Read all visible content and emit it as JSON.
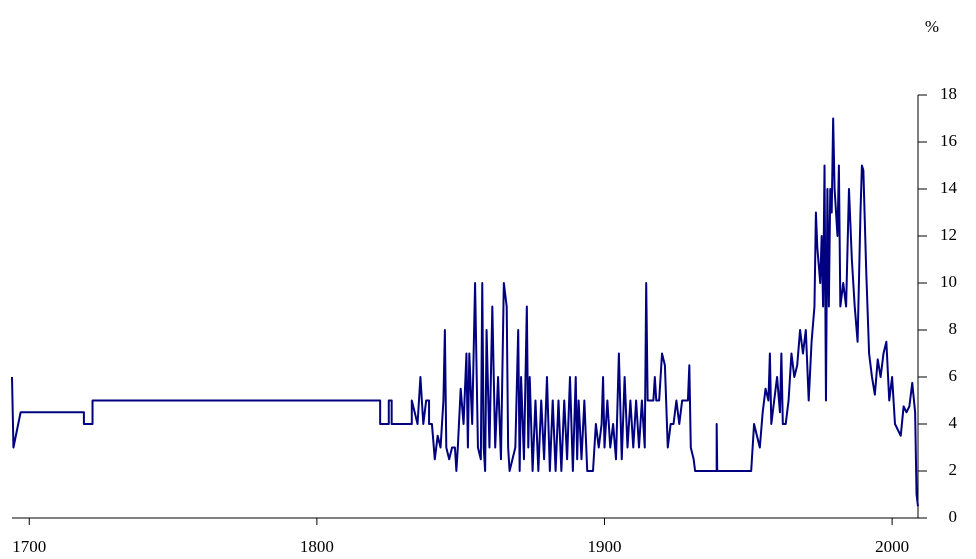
{
  "chart_data": {
    "type": "line",
    "y_axis_unit": "%",
    "xlim": [
      1694,
      2009
    ],
    "xticks": [
      1700,
      1800,
      1900,
      2000
    ],
    "ylim": [
      0,
      18
    ],
    "yticks": [
      0,
      2,
      4,
      6,
      8,
      10,
      12,
      14,
      16,
      18
    ],
    "series": [
      {
        "color": "#000080",
        "x": [
          1694,
          1694.5,
          1697,
          1719,
          1719,
          1722,
          1722,
          1822,
          1822,
          1825,
          1825,
          1826,
          1826,
          1833,
          1833,
          1835,
          1836,
          1837,
          1838,
          1839,
          1839,
          1840,
          1841,
          1842,
          1843,
          1844,
          1844.5,
          1845,
          1846,
          1847,
          1848,
          1848.5,
          1849,
          1850,
          1851,
          1852,
          1852.5,
          1853,
          1854,
          1855,
          1856,
          1857,
          1857.5,
          1858,
          1858.5,
          1859,
          1860,
          1861,
          1862,
          1863,
          1864,
          1865,
          1866,
          1866.5,
          1867,
          1868,
          1869,
          1870,
          1870.5,
          1871,
          1872,
          1873,
          1873.5,
          1874,
          1875,
          1876,
          1877,
          1878,
          1879,
          1880,
          1881,
          1882,
          1883,
          1884,
          1885,
          1886,
          1887,
          1888,
          1889,
          1890,
          1890.5,
          1891,
          1892,
          1893,
          1894,
          1896,
          1897,
          1898,
          1899,
          1899.5,
          1900,
          1901,
          1902,
          1903,
          1904,
          1905,
          1906,
          1907,
          1908,
          1909,
          1910,
          1911,
          1912,
          1913,
          1914,
          1914.5,
          1915,
          1917,
          1917.5,
          1918,
          1919,
          1919.5,
          1920,
          1921,
          1922,
          1923,
          1924,
          1925,
          1926,
          1927,
          1929,
          1929.5,
          1930,
          1931,
          1931.5,
          1939,
          1939,
          1939.2,
          1951,
          1952,
          1953,
          1954,
          1955,
          1956,
          1957,
          1957.5,
          1958,
          1960,
          1961,
          1961.5,
          1962,
          1963,
          1964,
          1965,
          1966,
          1967,
          1968,
          1969,
          1970,
          1971,
          1972,
          1973,
          1973.5,
          1974,
          1975,
          1975.5,
          1976,
          1976.5,
          1977,
          1977.5,
          1978,
          1978.5,
          1979,
          1979.5,
          1980,
          1981,
          1981.5,
          1982,
          1983,
          1984,
          1985,
          1986,
          1987,
          1988,
          1989,
          1989.5,
          1990,
          1991,
          1992,
          1993,
          1994,
          1995,
          1996,
          1997,
          1998,
          1999,
          2000,
          2001,
          2003,
          2004,
          2005,
          2006,
          2007,
          2008,
          2008.5,
          2009
        ],
        "values": [
          6,
          3,
          4.5,
          4.5,
          4,
          4,
          5,
          5,
          4,
          4,
          5,
          5,
          4,
          4,
          5,
          4,
          6,
          4,
          5,
          5,
          4,
          4,
          2.5,
          3.5,
          3,
          5,
          8,
          3,
          2.5,
          3,
          3,
          2,
          3,
          5.5,
          4,
          7,
          3,
          7,
          4,
          10,
          3,
          2.5,
          10,
          3,
          2,
          8,
          3,
          9,
          3,
          6,
          2.5,
          10,
          9,
          3,
          2,
          2.5,
          3,
          8,
          2,
          6,
          2.5,
          9,
          3,
          6,
          2,
          5,
          2,
          5,
          2.5,
          6,
          2,
          5,
          2,
          5,
          2,
          5,
          2.5,
          6,
          2,
          6,
          2.5,
          5,
          2.5,
          5,
          2,
          2,
          4,
          3,
          4,
          6,
          3,
          5,
          3,
          4,
          2.5,
          7,
          2.5,
          6,
          3,
          5,
          3,
          5,
          3,
          5,
          3,
          10,
          5,
          5,
          6,
          5,
          5,
          6,
          7,
          6.5,
          3,
          4,
          4,
          5,
          4,
          5,
          5,
          6.5,
          3,
          2.5,
          2,
          2,
          4,
          2,
          2,
          4,
          3.5,
          3,
          4.5,
          5.5,
          5,
          7,
          4,
          6,
          4.5,
          7,
          4,
          4,
          5,
          7,
          6,
          6.5,
          8,
          7,
          8,
          5,
          7.5,
          9,
          13,
          11.5,
          10,
          12,
          9,
          15,
          5,
          14,
          9,
          14,
          13,
          17,
          14,
          12,
          15,
          9,
          10,
          9,
          14,
          11,
          9,
          7.5,
          13,
          15,
          14.8,
          10.5,
          7,
          6,
          5.25,
          6.75,
          6,
          7,
          7.5,
          5,
          6,
          4,
          3.5,
          4.75,
          4.5,
          4.75,
          5.75,
          4.5,
          1,
          0.5
        ]
      }
    ]
  }
}
